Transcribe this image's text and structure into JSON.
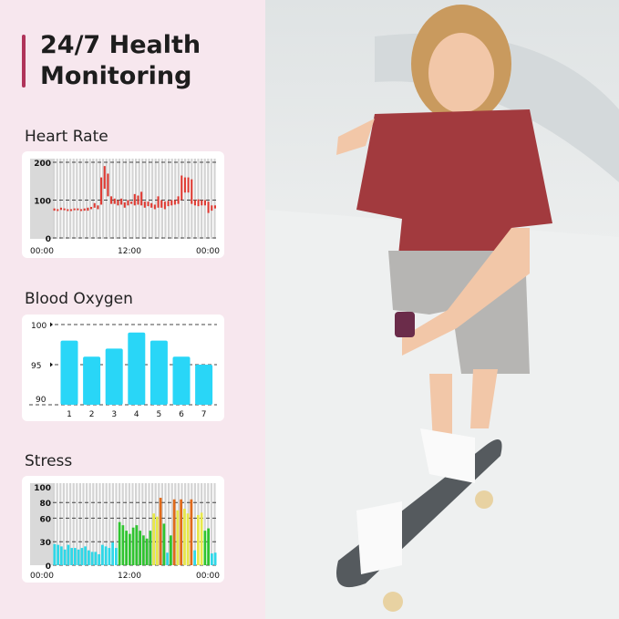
{
  "title": "24/7 Health Monitoring",
  "colors": {
    "accent": "#b0345a",
    "heart": "#e03a32",
    "spo2": "#29d6f7",
    "stress_low": "#2ed8e8",
    "stress_normal": "#2fc42f",
    "stress_medium": "#e8e84a",
    "stress_high": "#e06a1a"
  },
  "chart_data": [
    {
      "type": "bar",
      "title": "Heart Rate",
      "yticks": [
        "200",
        "100",
        "0"
      ],
      "ylim": [
        0,
        200
      ],
      "xticks": [
        "00:00",
        "12:00",
        "00:00"
      ],
      "grid": true,
      "ranges": [
        [
          72,
          78
        ],
        [
          72,
          76
        ],
        [
          74,
          80
        ],
        [
          74,
          78
        ],
        [
          72,
          76
        ],
        [
          72,
          76
        ],
        [
          74,
          78
        ],
        [
          74,
          78
        ],
        [
          72,
          76
        ],
        [
          72,
          78
        ],
        [
          72,
          80
        ],
        [
          76,
          82
        ],
        [
          80,
          92
        ],
        [
          76,
          86
        ],
        [
          88,
          160
        ],
        [
          130,
          190
        ],
        [
          110,
          170
        ],
        [
          90,
          110
        ],
        [
          90,
          104
        ],
        [
          86,
          100
        ],
        [
          88,
          104
        ],
        [
          80,
          94
        ],
        [
          86,
          100
        ],
        [
          90,
          96
        ],
        [
          86,
          116
        ],
        [
          88,
          112
        ],
        [
          86,
          122
        ],
        [
          80,
          96
        ],
        [
          84,
          96
        ],
        [
          80,
          92
        ],
        [
          76,
          88
        ],
        [
          80,
          110
        ],
        [
          80,
          100
        ],
        [
          76,
          96
        ],
        [
          84,
          98
        ],
        [
          86,
          100
        ],
        [
          88,
          100
        ],
        [
          90,
          110
        ],
        [
          100,
          165
        ],
        [
          120,
          160
        ],
        [
          120,
          160
        ],
        [
          90,
          155
        ],
        [
          86,
          100
        ],
        [
          84,
          102
        ],
        [
          86,
          100
        ],
        [
          86,
          100
        ],
        [
          66,
          96
        ],
        [
          72,
          86
        ],
        [
          78,
          86
        ]
      ]
    },
    {
      "type": "bar",
      "title": "Blood Oxygen",
      "categories": [
        "1",
        "2",
        "3",
        "4",
        "5",
        "6",
        "7"
      ],
      "values": [
        98,
        96,
        97,
        99,
        98,
        96,
        95
      ],
      "yticks": [
        "100",
        "95",
        "90"
      ],
      "ylim": [
        90,
        100
      ],
      "grid": true
    },
    {
      "type": "bar",
      "title": "Stress",
      "yticks": [
        "100",
        "80",
        "60",
        "30",
        "0"
      ],
      "ylim": [
        0,
        100
      ],
      "xticks": [
        "00:00",
        "12:00",
        "00:00"
      ],
      "grid": true,
      "values": [
        27,
        26,
        24,
        20,
        26,
        22,
        22,
        20,
        22,
        24,
        19,
        17,
        17,
        14,
        26,
        24,
        22,
        29,
        22,
        55,
        51,
        44,
        40,
        48,
        51,
        44,
        38,
        34,
        44,
        66,
        62,
        86,
        53,
        16,
        38,
        84,
        70,
        84,
        72,
        66,
        84,
        19,
        64,
        67,
        44,
        47,
        15,
        16
      ],
      "levels": [
        "low",
        "low",
        "low",
        "low",
        "low",
        "low",
        "low",
        "low",
        "low",
        "low",
        "low",
        "low",
        "low",
        "low",
        "low",
        "low",
        "low",
        "low",
        "low",
        "normal",
        "normal",
        "normal",
        "normal",
        "normal",
        "normal",
        "normal",
        "normal",
        "normal",
        "normal",
        "medium",
        "medium",
        "high",
        "normal",
        "low",
        "normal",
        "high",
        "medium",
        "high",
        "medium",
        "medium",
        "high",
        "low",
        "medium",
        "medium",
        "normal",
        "normal",
        "low",
        "low"
      ]
    }
  ]
}
